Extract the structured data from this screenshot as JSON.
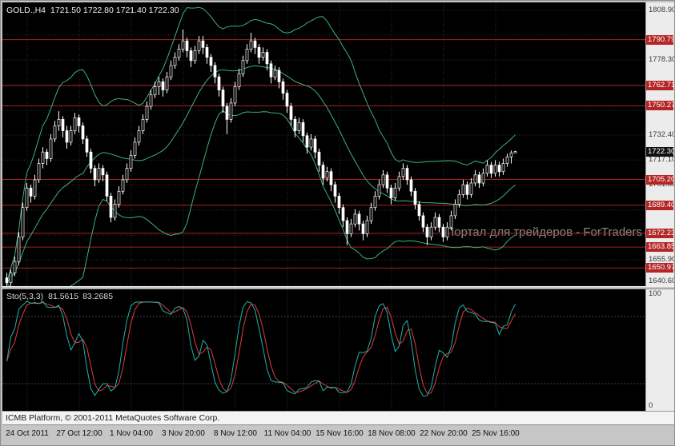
{
  "header": {
    "symbol": "GOLD.,H4",
    "ohlc": "1721.50 1722.80 1721.40 1722.30"
  },
  "watermark": "Портал для трейдеров - ForTraders",
  "footer": {
    "copyright": "ICMB Platform, © 2001-2011 MetaQuotes Software Corp."
  },
  "colors": {
    "background": "#000000",
    "grid": "#2e2e2e",
    "candle_stroke": "#ffffff",
    "bull_fill": "#000000",
    "bear_fill": "#ffffff",
    "bollinger": "#3cb371",
    "level_line": "#a82222",
    "level_badge": "#b42626",
    "current_badge": "#101010",
    "sto_main": "#20b2aa",
    "sto_signal": "#e03c3c",
    "sto_level": "#5a5a5a"
  },
  "chart_data": [
    {
      "type": "candlestick",
      "symbol": "GOLD.",
      "timeframe": "H4",
      "last_ohlc": {
        "open": 1721.5,
        "high": 1722.8,
        "low": 1721.4,
        "close": 1722.3
      },
      "overlay": "Bollinger Bands (20,2)",
      "y_axis": {
        "min": 1639.9,
        "max": 1813.6,
        "grid_base": 1640.6,
        "grid_step": 15.3,
        "grid_count": 12,
        "ticks": [
          1808.9,
          1778.3,
          1732.4,
          1717.1,
          1701.8,
          1655.9,
          1640.6
        ]
      },
      "x_ticks": [
        "24 Oct 2011",
        "27 Oct 12:00",
        "1 Nov 04:00",
        "3 Nov 20:00",
        "8 Nov 12:00",
        "11 Nov 04:00",
        "15 Nov 16:00",
        "18 Nov 08:00",
        "22 Nov 20:00",
        "25 Nov 16:00"
      ],
      "horizontal_lines": [
        1790.79,
        1762.71,
        1750.27,
        1705.2,
        1689.4,
        1672.23,
        1663.85,
        1650.97
      ],
      "current_price": 1722.3,
      "candles": [
        [
          1645,
          1648,
          1638,
          1642
        ],
        [
          1642,
          1650,
          1640,
          1648
        ],
        [
          1648,
          1658,
          1646,
          1655
        ],
        [
          1655,
          1673,
          1653,
          1670
        ],
        [
          1670,
          1691,
          1668,
          1688
        ],
        [
          1688,
          1703,
          1686,
          1700
        ],
        [
          1700,
          1702,
          1691,
          1695
        ],
        [
          1695,
          1708,
          1693,
          1705
        ],
        [
          1705,
          1718,
          1703,
          1715
        ],
        [
          1715,
          1725,
          1712,
          1722
        ],
        [
          1722,
          1724,
          1714,
          1718
        ],
        [
          1718,
          1733,
          1716,
          1730
        ],
        [
          1730,
          1741,
          1728,
          1738
        ],
        [
          1738,
          1747,
          1735,
          1742
        ],
        [
          1742,
          1744,
          1731,
          1735
        ],
        [
          1735,
          1738,
          1724,
          1728
        ],
        [
          1728,
          1738,
          1726,
          1735
        ],
        [
          1735,
          1746,
          1733,
          1743
        ],
        [
          1743,
          1745,
          1734,
          1738
        ],
        [
          1738,
          1740,
          1727,
          1730
        ],
        [
          1730,
          1732,
          1719,
          1722
        ],
        [
          1722,
          1724,
          1709,
          1712
        ],
        [
          1712,
          1714,
          1701,
          1705
        ],
        [
          1705,
          1715,
          1703,
          1712
        ],
        [
          1712,
          1714,
          1704,
          1708
        ],
        [
          1708,
          1710,
          1692,
          1695
        ],
        [
          1695,
          1697,
          1679,
          1682
        ],
        [
          1682,
          1693,
          1680,
          1690
        ],
        [
          1690,
          1701,
          1688,
          1698
        ],
        [
          1698,
          1708,
          1696,
          1705
        ],
        [
          1705,
          1715,
          1703,
          1712
        ],
        [
          1712,
          1723,
          1710,
          1720
        ],
        [
          1720,
          1731,
          1718,
          1728
        ],
        [
          1728,
          1738,
          1726,
          1735
        ],
        [
          1735,
          1745,
          1733,
          1742
        ],
        [
          1742,
          1753,
          1740,
          1750
        ],
        [
          1750,
          1760,
          1748,
          1757
        ],
        [
          1757,
          1765,
          1755,
          1762
        ],
        [
          1762,
          1768,
          1757,
          1765
        ],
        [
          1765,
          1767,
          1756,
          1760
        ],
        [
          1760,
          1771,
          1758,
          1768
        ],
        [
          1768,
          1778,
          1766,
          1775
        ],
        [
          1775,
          1783,
          1773,
          1780
        ],
        [
          1780,
          1788,
          1778,
          1785
        ],
        [
          1785,
          1797,
          1783,
          1790
        ],
        [
          1790,
          1792,
          1780,
          1784
        ],
        [
          1784,
          1786,
          1774,
          1778
        ],
        [
          1778,
          1787,
          1776,
          1784
        ],
        [
          1784,
          1793,
          1782,
          1790
        ],
        [
          1790,
          1793,
          1782,
          1786
        ],
        [
          1786,
          1788,
          1776,
          1780
        ],
        [
          1780,
          1782,
          1771,
          1775
        ],
        [
          1775,
          1777,
          1764,
          1768
        ],
        [
          1768,
          1770,
          1756,
          1760
        ],
        [
          1760,
          1762,
          1746,
          1750
        ],
        [
          1750,
          1752,
          1733,
          1742
        ],
        [
          1742,
          1755,
          1740,
          1752
        ],
        [
          1752,
          1765,
          1750,
          1762
        ],
        [
          1762,
          1773,
          1760,
          1770
        ],
        [
          1770,
          1781,
          1768,
          1778
        ],
        [
          1778,
          1788,
          1776,
          1785
        ],
        [
          1785,
          1795,
          1783,
          1790
        ],
        [
          1790,
          1792,
          1782,
          1786
        ],
        [
          1786,
          1788,
          1776,
          1780
        ],
        [
          1780,
          1786,
          1778,
          1783
        ],
        [
          1783,
          1785,
          1772,
          1776
        ],
        [
          1776,
          1778,
          1764,
          1768
        ],
        [
          1768,
          1775,
          1766,
          1772
        ],
        [
          1772,
          1774,
          1761,
          1765
        ],
        [
          1765,
          1767,
          1754,
          1758
        ],
        [
          1758,
          1760,
          1746,
          1750
        ],
        [
          1750,
          1752,
          1738,
          1742
        ],
        [
          1742,
          1744,
          1731,
          1735
        ],
        [
          1735,
          1743,
          1733,
          1740
        ],
        [
          1740,
          1742,
          1728,
          1732
        ],
        [
          1732,
          1734,
          1721,
          1725
        ],
        [
          1725,
          1733,
          1723,
          1730
        ],
        [
          1730,
          1732,
          1718,
          1722
        ],
        [
          1722,
          1724,
          1710,
          1714
        ],
        [
          1714,
          1716,
          1702,
          1706
        ],
        [
          1706,
          1713,
          1704,
          1710
        ],
        [
          1710,
          1712,
          1698,
          1702
        ],
        [
          1702,
          1704,
          1691,
          1695
        ],
        [
          1695,
          1697,
          1684,
          1688
        ],
        [
          1688,
          1690,
          1676,
          1680
        ],
        [
          1680,
          1682,
          1665,
          1672
        ],
        [
          1672,
          1681,
          1670,
          1678
        ],
        [
          1678,
          1687,
          1676,
          1684
        ],
        [
          1684,
          1686,
          1674,
          1678
        ],
        [
          1678,
          1680,
          1668,
          1672
        ],
        [
          1672,
          1683,
          1670,
          1680
        ],
        [
          1680,
          1691,
          1678,
          1688
        ],
        [
          1688,
          1698,
          1686,
          1695
        ],
        [
          1695,
          1705,
          1693,
          1702
        ],
        [
          1702,
          1711,
          1700,
          1708
        ],
        [
          1708,
          1710,
          1697,
          1700
        ],
        [
          1700,
          1702,
          1690,
          1694
        ],
        [
          1694,
          1703,
          1692,
          1700
        ],
        [
          1700,
          1710,
          1698,
          1707
        ],
        [
          1707,
          1715,
          1705,
          1712
        ],
        [
          1712,
          1714,
          1702,
          1705
        ],
        [
          1705,
          1707,
          1695,
          1698
        ],
        [
          1698,
          1700,
          1687,
          1690
        ],
        [
          1690,
          1692,
          1680,
          1683
        ],
        [
          1683,
          1685,
          1673,
          1676
        ],
        [
          1676,
          1678,
          1665,
          1670
        ],
        [
          1670,
          1679,
          1668,
          1676
        ],
        [
          1676,
          1685,
          1674,
          1682
        ],
        [
          1682,
          1684,
          1673,
          1676
        ],
        [
          1676,
          1678,
          1667,
          1670
        ],
        [
          1670,
          1679,
          1668,
          1676
        ],
        [
          1676,
          1686,
          1674,
          1683
        ],
        [
          1683,
          1693,
          1681,
          1690
        ],
        [
          1690,
          1699,
          1688,
          1696
        ],
        [
          1696,
          1705,
          1694,
          1702
        ],
        [
          1702,
          1704,
          1693,
          1696
        ],
        [
          1696,
          1706,
          1694,
          1703
        ],
        [
          1703,
          1711,
          1701,
          1708
        ],
        [
          1708,
          1710,
          1700,
          1703
        ],
        [
          1703,
          1712,
          1701,
          1709
        ],
        [
          1709,
          1717,
          1707,
          1714
        ],
        [
          1714,
          1716,
          1706,
          1709
        ],
        [
          1709,
          1717,
          1707,
          1714
        ],
        [
          1714,
          1716,
          1707,
          1710
        ],
        [
          1710,
          1718,
          1708,
          1715
        ],
        [
          1715,
          1721,
          1713,
          1719
        ],
        [
          1719,
          1723,
          1715,
          1721.5
        ],
        [
          1721.5,
          1722.8,
          1721.4,
          1722.3
        ]
      ]
    },
    {
      "type": "line",
      "name": "Sto(5,3,3)",
      "params": {
        "k_period": 5,
        "d_period": 3,
        "slowing": 3
      },
      "main_value": "81.5615",
      "signal_value": "83.2685",
      "range": [
        0,
        100
      ],
      "levels": [
        20,
        80
      ],
      "y_ticks": [
        "100",
        "0"
      ]
    }
  ]
}
